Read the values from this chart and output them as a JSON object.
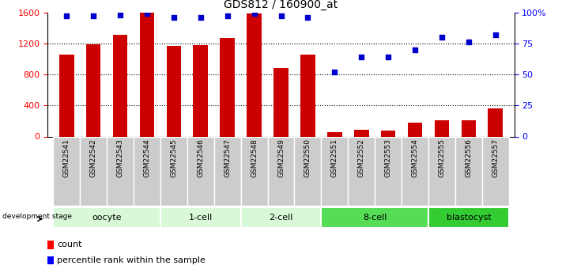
{
  "title": "GDS812 / 160900_at",
  "samples": [
    "GSM22541",
    "GSM22542",
    "GSM22543",
    "GSM22544",
    "GSM22545",
    "GSM22546",
    "GSM22547",
    "GSM22548",
    "GSM22549",
    "GSM22550",
    "GSM22551",
    "GSM22552",
    "GSM22553",
    "GSM22554",
    "GSM22555",
    "GSM22556",
    "GSM22557"
  ],
  "counts": [
    1050,
    1185,
    1310,
    1600,
    1165,
    1175,
    1265,
    1590,
    880,
    1050,
    55,
    85,
    80,
    175,
    210,
    210,
    360
  ],
  "percentile_ranks": [
    97,
    97,
    98,
    99,
    96,
    96,
    97,
    99,
    97,
    96,
    52,
    64,
    64,
    70,
    80,
    76,
    82
  ],
  "stages": [
    {
      "label": "oocyte",
      "start": 0,
      "end": 3,
      "color": "#d8f5d8"
    },
    {
      "label": "1-cell",
      "start": 4,
      "end": 6,
      "color": "#d8f5d8"
    },
    {
      "label": "2-cell",
      "start": 7,
      "end": 9,
      "color": "#d8f5d8"
    },
    {
      "label": "8-cell",
      "start": 10,
      "end": 13,
      "color": "#66dd66"
    },
    {
      "label": "blastocyst",
      "start": 14,
      "end": 16,
      "color": "#44cc44"
    }
  ],
  "bar_color": "#cc0000",
  "dot_color": "#0000cc",
  "ylim_left": [
    0,
    1600
  ],
  "ylim_right": [
    0,
    100
  ],
  "yticks_left": [
    0,
    400,
    800,
    1200,
    1600
  ],
  "yticks_right": [
    0,
    25,
    50,
    75,
    100
  ],
  "ytick_labels_right": [
    "0",
    "25",
    "50",
    "75",
    "100%"
  ],
  "grid_values": [
    400,
    800,
    1200
  ],
  "bar_width": 0.55
}
